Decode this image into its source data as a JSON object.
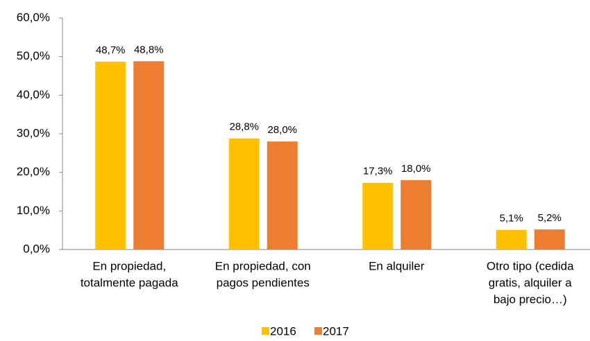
{
  "chart_data": {
    "type": "bar",
    "categories": [
      [
        "En propiedad,",
        "totalmente pagada"
      ],
      [
        "En propiedad, con",
        "pagos pendientes"
      ],
      [
        "En alquiler"
      ],
      [
        "Otro tipo (cedida",
        "gratis, alquiler a",
        "bajo precio…)"
      ]
    ],
    "series": [
      {
        "name": "2016",
        "color": "#FFC000",
        "values": [
          48.7,
          28.8,
          17.3,
          5.1
        ],
        "value_labels": [
          "48,7%",
          "28,8%",
          "17,3%",
          "5,1%"
        ]
      },
      {
        "name": "2017",
        "color": "#ED7D31",
        "values": [
          48.8,
          28.0,
          18.0,
          5.2
        ],
        "value_labels": [
          "48,8%",
          "28,0%",
          "18,0%",
          "5,2%"
        ]
      }
    ],
    "ylim": [
      0,
      60
    ],
    "yticks": [
      {
        "value": 0,
        "label": "0,0%"
      },
      {
        "value": 10,
        "label": "10,0%"
      },
      {
        "value": 20,
        "label": "20,0%"
      },
      {
        "value": 30,
        "label": "30,0%"
      },
      {
        "value": 40,
        "label": "40,0%"
      },
      {
        "value": 50,
        "label": "50,0%"
      },
      {
        "value": 60,
        "label": "60,0%"
      }
    ],
    "legend": "bottom"
  }
}
